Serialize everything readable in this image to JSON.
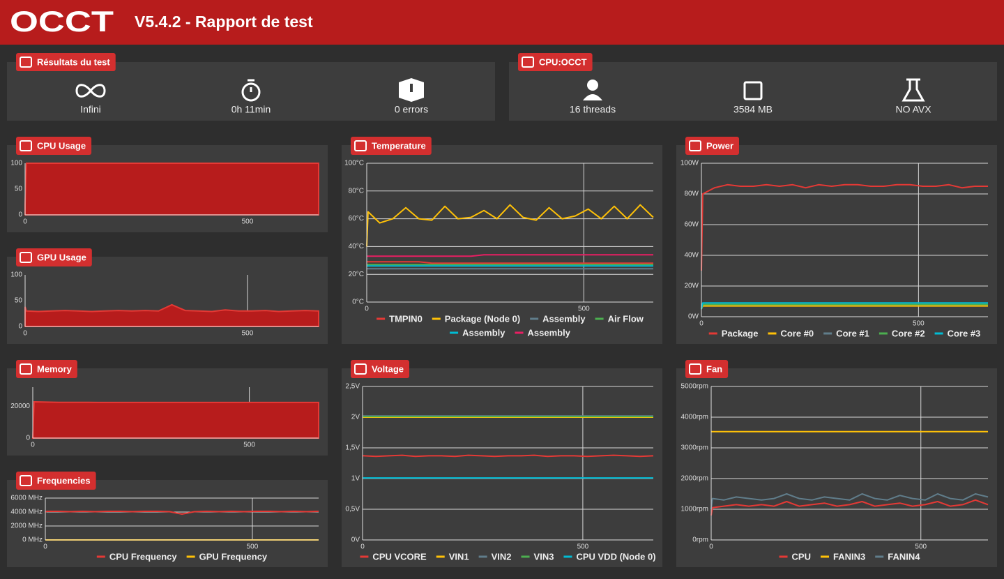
{
  "header": {
    "logo": "OCCT",
    "title": "V5.4.2 - Rapport de test"
  },
  "results": {
    "title": "Résultats du test",
    "items": [
      "Infini",
      "0h 11min",
      "0 errors"
    ]
  },
  "cpu": {
    "title": "CPU:OCCT",
    "items": [
      "16 threads",
      "3584 MB",
      "NO AVX"
    ]
  },
  "chart_data": [
    {
      "type": "area",
      "title": "CPU Usage",
      "grid": true,
      "x": [
        0,
        3,
        30,
        60,
        90,
        120,
        150,
        180,
        210,
        240,
        270,
        300,
        330,
        360,
        390,
        420,
        450,
        480,
        510,
        540,
        570,
        600,
        630,
        660
      ],
      "xlim": [
        0,
        660
      ],
      "xticks": [
        0,
        500
      ],
      "ylim": [
        0,
        100
      ],
      "yticks": [
        0,
        50,
        100
      ],
      "series": [
        {
          "color": "#e53935",
          "values": [
            20,
            100,
            100,
            100,
            100,
            100,
            100,
            100,
            100,
            100,
            100,
            100,
            100,
            100,
            100,
            100,
            100,
            100,
            100,
            100,
            100,
            100,
            100,
            100
          ]
        }
      ]
    },
    {
      "type": "area",
      "title": "GPU Usage",
      "grid": true,
      "x": [
        0,
        3,
        30,
        60,
        90,
        120,
        150,
        180,
        210,
        240,
        270,
        300,
        330,
        360,
        390,
        420,
        450,
        480,
        510,
        540,
        570,
        600,
        630,
        660
      ],
      "xlim": [
        0,
        660
      ],
      "xticks": [
        0,
        500
      ],
      "ylim": [
        0,
        100
      ],
      "yticks": [
        0,
        50,
        100
      ],
      "series": [
        {
          "color": "#e53935",
          "values": [
            38,
            30,
            29,
            30,
            31,
            30,
            29,
            30,
            31,
            30,
            31,
            30,
            42,
            31,
            30,
            29,
            32,
            30,
            30,
            31,
            29,
            30,
            31,
            30
          ]
        }
      ]
    },
    {
      "type": "area",
      "title": "Memory",
      "grid": true,
      "x": [
        0,
        3,
        30,
        60,
        90,
        120,
        150,
        180,
        210,
        240,
        270,
        300,
        330,
        360,
        390,
        420,
        450,
        480,
        510,
        540,
        570,
        600,
        630,
        660
      ],
      "xlim": [
        0,
        660
      ],
      "xticks": [
        0,
        500
      ],
      "ylim": [
        0,
        32000
      ],
      "yticks": [
        0,
        20000
      ],
      "series": [
        {
          "color": "#e53935",
          "values": [
            0,
            22800,
            22600,
            22500,
            22500,
            22500,
            22400,
            22400,
            22400,
            22400,
            22400,
            22400,
            22400,
            22400,
            22400,
            22400,
            22400,
            22400,
            22400,
            22400,
            22400,
            22400,
            22400,
            22400
          ]
        }
      ]
    },
    {
      "type": "line",
      "title": "Frequencies",
      "grid": true,
      "x": [
        0,
        3,
        30,
        60,
        90,
        120,
        150,
        180,
        210,
        240,
        270,
        300,
        330,
        360,
        390,
        420,
        450,
        480,
        510,
        540,
        570,
        600,
        630,
        660
      ],
      "xlim": [
        0,
        660
      ],
      "xticks": [
        0,
        500
      ],
      "ylim": [
        0,
        6000
      ],
      "yticks": [
        {
          "value": 0,
          "label": "0 MHz"
        },
        {
          "value": 2000,
          "label": "2000 MHz"
        },
        {
          "value": 4000,
          "label": "4000 MHz"
        },
        {
          "value": 6000,
          "label": "6000 MHz"
        }
      ],
      "series": [
        {
          "name": "CPU Frequency",
          "color": "#e53935",
          "values": [
            4000,
            4100,
            4100,
            4050,
            4100,
            4050,
            4100,
            4100,
            4050,
            4100,
            4100,
            4050,
            3700,
            4050,
            4100,
            4050,
            4100,
            4050,
            4100,
            4100,
            4050,
            4100,
            4050,
            4100
          ]
        },
        {
          "name": "GPU Frequency",
          "color": "#ffc107",
          "values": [
            0,
            0,
            0,
            0,
            0,
            0,
            0,
            0,
            0,
            0,
            0,
            0,
            0,
            0,
            0,
            0,
            0,
            0,
            0,
            0,
            0,
            0,
            0,
            0
          ]
        }
      ]
    },
    {
      "type": "line",
      "title": "Temperature",
      "grid": true,
      "x": [
        0,
        3,
        30,
        60,
        90,
        120,
        150,
        180,
        210,
        240,
        270,
        300,
        330,
        360,
        390,
        420,
        450,
        480,
        510,
        540,
        570,
        600,
        630,
        660
      ],
      "xlim": [
        0,
        660
      ],
      "xticks": [
        0,
        500
      ],
      "ylim": [
        0,
        100
      ],
      "yticks": [
        {
          "value": 0,
          "label": "0°C"
        },
        {
          "value": 20,
          "label": "20°C"
        },
        {
          "value": 40,
          "label": "40°C"
        },
        {
          "value": 60,
          "label": "60°C"
        },
        {
          "value": 80,
          "label": "80°C"
        },
        {
          "value": 100,
          "label": "100°C"
        }
      ],
      "series": [
        {
          "name": "TMPIN0",
          "color": "#e53935",
          "values": [
            29,
            29,
            29,
            29,
            29,
            29,
            28,
            28,
            28,
            28,
            28,
            28,
            28,
            28,
            28,
            28,
            28,
            28,
            28,
            28,
            28,
            28,
            28,
            28
          ]
        },
        {
          "name": "Package (Node 0)",
          "color": "#ffc107",
          "values": [
            40,
            65,
            57,
            60,
            68,
            60,
            59,
            69,
            60,
            61,
            66,
            60,
            70,
            61,
            59,
            68,
            60,
            62,
            67,
            60,
            69,
            60,
            70,
            61
          ]
        },
        {
          "name": "Assembly",
          "color": "#607d8b",
          "values": [
            24,
            24,
            24,
            24,
            24,
            24,
            24,
            24,
            24,
            24,
            24,
            24,
            24,
            24,
            24,
            24,
            24,
            24,
            24,
            24,
            24,
            24,
            24,
            24
          ]
        },
        {
          "name": "Air Flow",
          "color": "#4caf50",
          "values": [
            27,
            27,
            27,
            27,
            27,
            27,
            27,
            27,
            27,
            27,
            27,
            27,
            27,
            27,
            27,
            27,
            27,
            27,
            27,
            27,
            27,
            27,
            27,
            27
          ]
        },
        {
          "name": "Assembly",
          "color": "#00bcd4",
          "values": [
            26,
            26,
            26,
            26,
            26,
            26,
            26,
            26,
            26,
            26,
            26,
            26,
            26,
            26,
            26,
            26,
            26,
            26,
            26,
            26,
            26,
            26,
            26,
            26
          ]
        },
        {
          "name": "Assembly",
          "color": "#e91e63",
          "values": [
            33,
            33,
            33,
            33,
            33,
            33,
            33,
            33,
            33,
            33,
            34,
            34,
            34,
            34,
            34,
            34,
            34,
            34,
            34,
            34,
            34,
            34,
            34,
            34
          ]
        }
      ]
    },
    {
      "type": "line",
      "title": "Voltage",
      "grid": true,
      "x": [
        0,
        3,
        30,
        60,
        90,
        120,
        150,
        180,
        210,
        240,
        270,
        300,
        330,
        360,
        390,
        420,
        450,
        480,
        510,
        540,
        570,
        600,
        630,
        660
      ],
      "xlim": [
        0,
        660
      ],
      "xticks": [
        0,
        500
      ],
      "ylim": [
        0,
        2.5
      ],
      "yticks": [
        {
          "value": 0,
          "label": "0V"
        },
        {
          "value": 0.5,
          "label": "0,5V"
        },
        {
          "value": 1,
          "label": "1V"
        },
        {
          "value": 1.5,
          "label": "1,5V"
        },
        {
          "value": 2,
          "label": "2V"
        },
        {
          "value": 2.5,
          "label": "2,5V"
        }
      ],
      "series": [
        {
          "name": "CPU VCORE",
          "color": "#e53935",
          "values": [
            1.37,
            1.37,
            1.36,
            1.37,
            1.38,
            1.36,
            1.37,
            1.37,
            1.36,
            1.38,
            1.37,
            1.36,
            1.37,
            1.37,
            1.38,
            1.36,
            1.37,
            1.37,
            1.36,
            1.37,
            1.38,
            1.37,
            1.36,
            1.37
          ]
        },
        {
          "name": "VIN1",
          "color": "#ffc107",
          "values": [
            2,
            2,
            2,
            2,
            2,
            2,
            2,
            2,
            2,
            2,
            2,
            2,
            2,
            2,
            2,
            2,
            2,
            2,
            2,
            2,
            2,
            2,
            2,
            2
          ]
        },
        {
          "name": "VIN2",
          "color": "#607d8b",
          "values": [
            2.02,
            2.02,
            2.02,
            2.02,
            2.02,
            2.02,
            2.02,
            2.02,
            2.02,
            2.02,
            2.02,
            2.02,
            2.02,
            2.02,
            2.02,
            2.02,
            2.02,
            2.02,
            2.02,
            2.02,
            2.02,
            2.02,
            2.02,
            2.02
          ]
        },
        {
          "name": "VIN3",
          "color": "#4caf50",
          "values": [
            2.01,
            2.01,
            2.01,
            2.01,
            2.01,
            2.01,
            2.01,
            2.01,
            2.01,
            2.01,
            2.01,
            2.01,
            2.01,
            2.01,
            2.01,
            2.01,
            2.01,
            2.01,
            2.01,
            2.01,
            2.01,
            2.01,
            2.01,
            2.01
          ]
        },
        {
          "name": "CPU VDD (Node 0)",
          "color": "#00bcd4",
          "values": [
            1.01,
            1.01,
            1.01,
            1.01,
            1.01,
            1.01,
            1.01,
            1.01,
            1.01,
            1.01,
            1.01,
            1.01,
            1.01,
            1.01,
            1.01,
            1.01,
            1.01,
            1.01,
            1.01,
            1.01,
            1.01,
            1.01,
            1.01,
            1.01
          ]
        }
      ]
    },
    {
      "type": "line",
      "title": "Power",
      "grid": true,
      "x": [
        0,
        3,
        30,
        60,
        90,
        120,
        150,
        180,
        210,
        240,
        270,
        300,
        330,
        360,
        390,
        420,
        450,
        480,
        510,
        540,
        570,
        600,
        630,
        660
      ],
      "xlim": [
        0,
        660
      ],
      "xticks": [
        0,
        500
      ],
      "ylim": [
        0,
        100
      ],
      "yticks": [
        {
          "value": 0,
          "label": "0W"
        },
        {
          "value": 20,
          "label": "20W"
        },
        {
          "value": 40,
          "label": "40W"
        },
        {
          "value": 60,
          "label": "60W"
        },
        {
          "value": 80,
          "label": "80W"
        },
        {
          "value": 100,
          "label": "100W"
        }
      ],
      "series": [
        {
          "name": "Package",
          "color": "#e53935",
          "values": [
            30,
            80,
            84,
            86,
            85,
            85,
            86,
            85,
            86,
            84,
            86,
            85,
            86,
            86,
            85,
            85,
            86,
            86,
            85,
            85,
            86,
            84,
            85,
            85
          ]
        },
        {
          "name": "Core #0",
          "color": "#ffc107",
          "values": [
            5,
            7,
            7,
            7,
            7,
            7,
            7,
            7,
            7,
            7,
            7,
            7,
            7,
            7,
            7,
            7,
            7,
            7,
            7,
            7,
            7,
            7,
            7,
            7
          ]
        },
        {
          "name": "Core #1",
          "color": "#607d8b",
          "values": [
            5,
            8,
            8,
            8,
            8,
            8,
            8,
            8,
            8,
            8,
            8,
            8,
            8,
            8,
            8,
            8,
            8,
            8,
            8,
            8,
            8,
            8,
            8,
            8
          ]
        },
        {
          "name": "Core #2",
          "color": "#4caf50",
          "values": [
            5,
            8,
            8,
            8,
            8,
            8,
            8,
            8,
            8,
            8,
            8,
            8,
            8,
            8,
            8,
            8,
            8,
            8,
            8,
            8,
            8,
            8,
            8,
            8
          ]
        },
        {
          "name": "Core #3",
          "color": "#00bcd4",
          "values": [
            5,
            9,
            9,
            9,
            9,
            9,
            9,
            9,
            9,
            9,
            9,
            9,
            9,
            9,
            9,
            9,
            9,
            9,
            9,
            9,
            9,
            9,
            9,
            9
          ]
        }
      ]
    },
    {
      "type": "line",
      "title": "Fan",
      "grid": true,
      "x": [
        0,
        3,
        30,
        60,
        90,
        120,
        150,
        180,
        210,
        240,
        270,
        300,
        330,
        360,
        390,
        420,
        450,
        480,
        510,
        540,
        570,
        600,
        630,
        660
      ],
      "xlim": [
        0,
        660
      ],
      "xticks": [
        0,
        500
      ],
      "ylim": [
        0,
        5000
      ],
      "yticks": [
        {
          "value": 0,
          "label": "0rpm"
        },
        {
          "value": 1000,
          "label": "1000rpm"
        },
        {
          "value": 2000,
          "label": "2000rpm"
        },
        {
          "value": 3000,
          "label": "3000rpm"
        },
        {
          "value": 4000,
          "label": "4000rpm"
        },
        {
          "value": 5000,
          "label": "5000rpm"
        }
      ],
      "series": [
        {
          "name": "CPU",
          "color": "#e53935",
          "values": [
            800,
            1050,
            1100,
            1150,
            1100,
            1150,
            1100,
            1250,
            1100,
            1150,
            1200,
            1100,
            1150,
            1250,
            1100,
            1150,
            1200,
            1100,
            1150,
            1250,
            1100,
            1150,
            1300,
            1150
          ]
        },
        {
          "name": "FANIN3",
          "color": "#ffc107",
          "values": [
            3530,
            3530,
            3530,
            3530,
            3530,
            3530,
            3530,
            3530,
            3530,
            3530,
            3530,
            3530,
            3530,
            3530,
            3530,
            3530,
            3530,
            3530,
            3530,
            3530,
            3530,
            3530,
            3530,
            3530
          ]
        },
        {
          "name": "FANIN4",
          "color": "#607d8b",
          "values": [
            1000,
            1350,
            1300,
            1400,
            1350,
            1300,
            1350,
            1500,
            1350,
            1300,
            1400,
            1350,
            1300,
            1500,
            1350,
            1300,
            1450,
            1350,
            1300,
            1500,
            1350,
            1300,
            1500,
            1400
          ]
        }
      ]
    }
  ]
}
